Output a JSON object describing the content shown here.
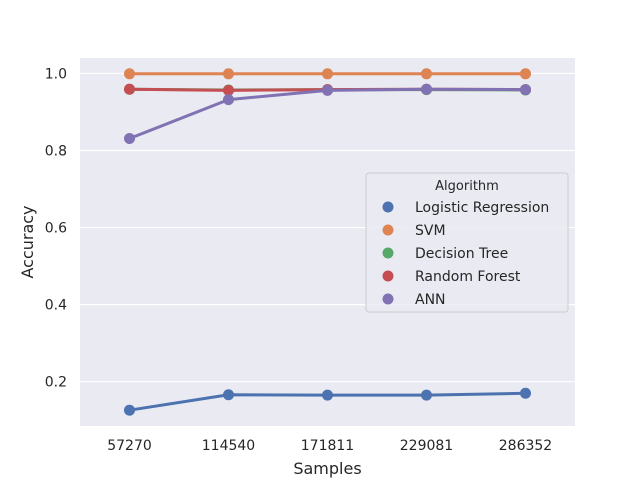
{
  "chart_data": {
    "type": "line",
    "xlabel": "Samples",
    "ylabel": "Accuracy",
    "categories": [
      "57270",
      "114540",
      "171811",
      "229081",
      "286352"
    ],
    "ylim": [
      0.085,
      1.04
    ],
    "yticks": [
      0.2,
      0.4,
      0.6,
      0.8,
      1.0
    ],
    "ytick_labels": [
      "0.2",
      "0.4",
      "0.6",
      "0.8",
      "1.0"
    ],
    "grid": true,
    "legend": {
      "title": "Algorithm",
      "placement": "center-right"
    },
    "series": [
      {
        "name": "Logistic Regression",
        "color": "#4c72b0",
        "values": [
          0.126,
          0.166,
          0.165,
          0.165,
          0.17
        ]
      },
      {
        "name": "SVM",
        "color": "#dd8452",
        "values": [
          0.999,
          0.999,
          0.999,
          0.999,
          0.999
        ]
      },
      {
        "name": "Decision Tree",
        "color": "#55a868",
        "values": [
          0.959,
          0.957,
          0.958,
          0.958,
          0.957
        ]
      },
      {
        "name": "Random Forest",
        "color": "#c44e52",
        "values": [
          0.959,
          0.956,
          0.958,
          0.959,
          0.958
        ]
      },
      {
        "name": "ANN",
        "color": "#8172b3",
        "values": [
          0.831,
          0.932,
          0.956,
          0.959,
          0.958
        ]
      }
    ]
  }
}
